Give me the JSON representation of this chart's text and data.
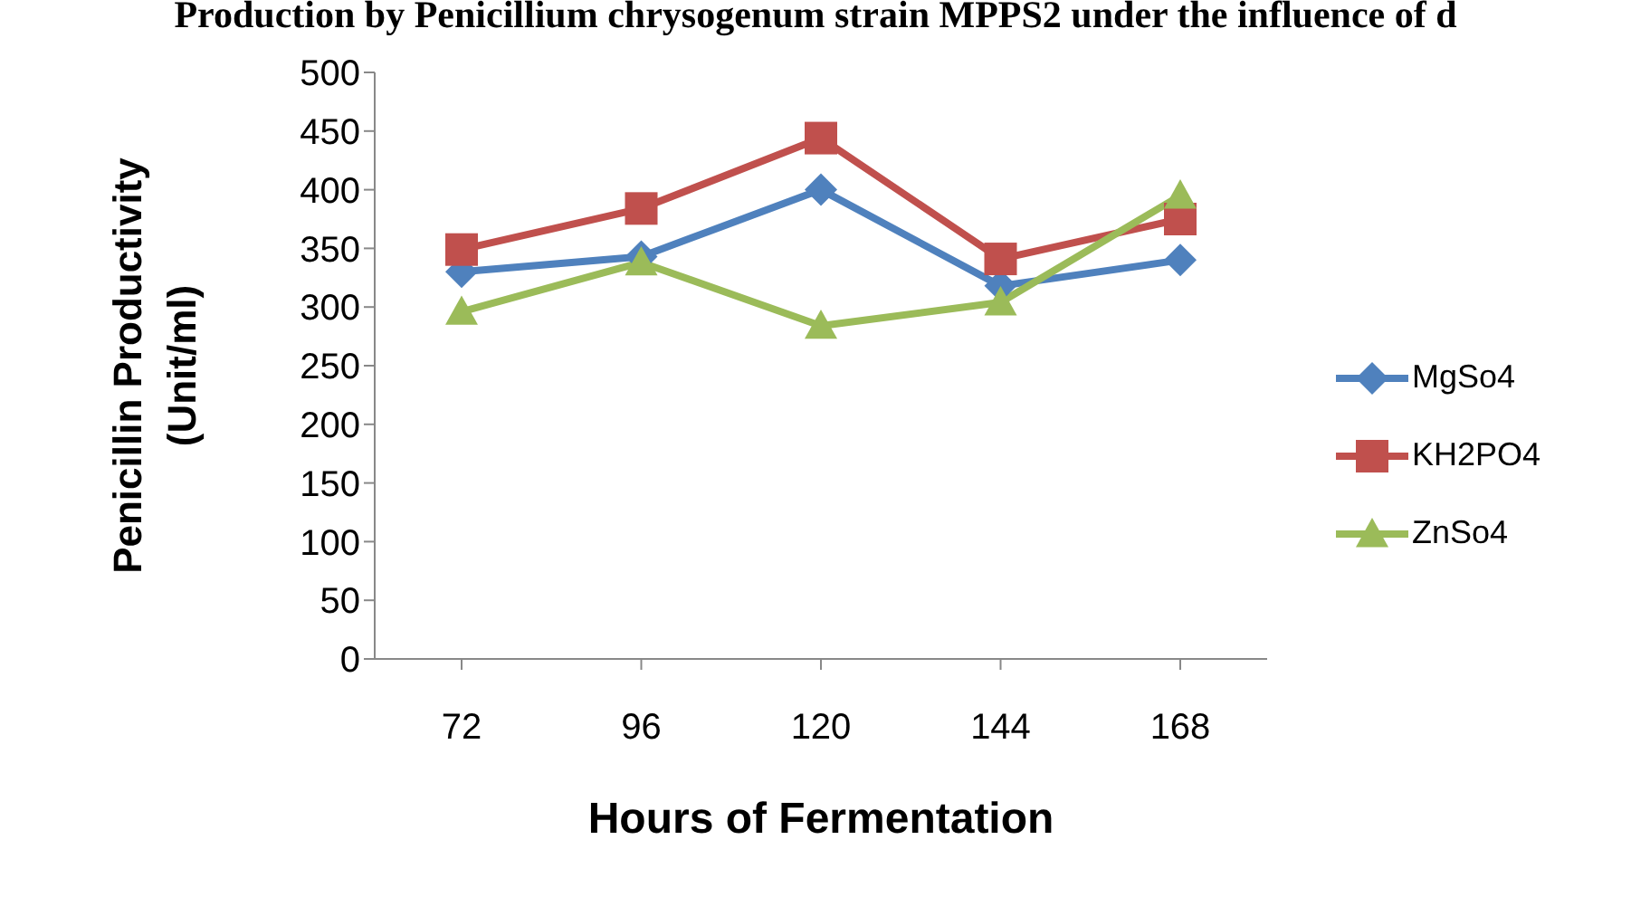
{
  "chart_data": {
    "type": "line",
    "title": "Production by Penicillium chrysogenum strain MPPS2 under the influence of d",
    "xlabel": "Hours of Fermentation",
    "ylabel": "Penicillin Productivity (Unit/ml)",
    "categories": [
      "72",
      "96",
      "120",
      "144",
      "168"
    ],
    "series": [
      {
        "name": "MgSo4",
        "color": "#4f81bd",
        "marker": "diamond",
        "values": [
          330,
          343,
          400,
          318,
          340
        ]
      },
      {
        "name": "KH2PO4",
        "color": "#c0504d",
        "marker": "square",
        "values": [
          349,
          384,
          444,
          341,
          375
        ]
      },
      {
        "name": "ZnSo4",
        "color": "#9bbb59",
        "marker": "triangle",
        "values": [
          296,
          338,
          284,
          304,
          395
        ]
      }
    ],
    "ylim": [
      0,
      500
    ],
    "yticks": [
      0,
      50,
      100,
      150,
      200,
      250,
      300,
      350,
      400,
      450,
      500
    ],
    "legend": "right",
    "line_style": "solid"
  }
}
